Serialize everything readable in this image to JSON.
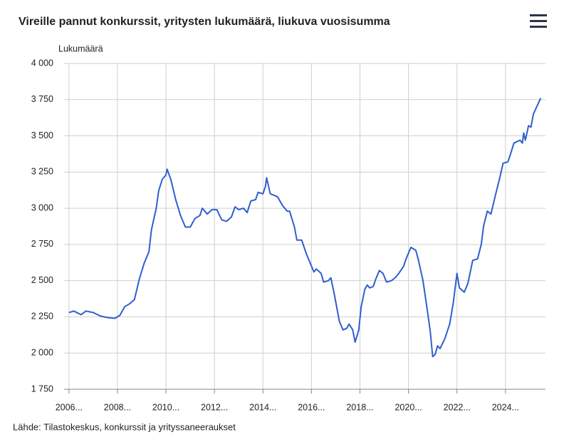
{
  "chart_data": {
    "type": "line",
    "title": "Vireille pannut konkurssit, yritysten lukumäärä, liukuva vuosisumma",
    "y_label": "Lukumäärä",
    "source": "Lähde: Tilastokeskus, konkurssit ja yrityssaneeraukset",
    "grid": true,
    "xlim": [
      2005.8,
      2025.65
    ],
    "ylim": [
      1750,
      4000
    ],
    "xticks": [
      {
        "value": 2006,
        "label": "2006..."
      },
      {
        "value": 2008,
        "label": "2008..."
      },
      {
        "value": 2010,
        "label": "2010..."
      },
      {
        "value": 2012,
        "label": "2012..."
      },
      {
        "value": 2014,
        "label": "2014..."
      },
      {
        "value": 2016,
        "label": "2016..."
      },
      {
        "value": 2018,
        "label": "2018..."
      },
      {
        "value": 2020,
        "label": "2020..."
      },
      {
        "value": 2022,
        "label": "2022..."
      },
      {
        "value": 2024,
        "label": "2024..."
      }
    ],
    "yticks": [
      {
        "value": 1750,
        "label": "1 750"
      },
      {
        "value": 2000,
        "label": "2 000"
      },
      {
        "value": 2250,
        "label": "2 250"
      },
      {
        "value": 2500,
        "label": "2 500"
      },
      {
        "value": 2750,
        "label": "2 750"
      },
      {
        "value": 3000,
        "label": "3 000"
      },
      {
        "value": 3250,
        "label": "3 250"
      },
      {
        "value": 3500,
        "label": "3 500"
      },
      {
        "value": 3750,
        "label": "3 750"
      },
      {
        "value": 4000,
        "label": "4 000"
      }
    ],
    "series": [
      {
        "color": "#2f5fcf",
        "x": [
          2006.0,
          2006.2,
          2006.5,
          2006.7,
          2007.0,
          2007.3,
          2007.6,
          2007.9,
          2008.1,
          2008.3,
          2008.5,
          2008.7,
          2008.9,
          2009.1,
          2009.3,
          2009.4,
          2009.6,
          2009.7,
          2009.85,
          2010.0,
          2010.05,
          2010.2,
          2010.4,
          2010.6,
          2010.8,
          2011.0,
          2011.2,
          2011.4,
          2011.5,
          2011.7,
          2011.9,
          2012.1,
          2012.3,
          2012.5,
          2012.7,
          2012.85,
          2013.0,
          2013.2,
          2013.35,
          2013.5,
          2013.7,
          2013.8,
          2014.0,
          2014.1,
          2014.15,
          2014.3,
          2014.6,
          2014.8,
          2015.0,
          2015.1,
          2015.3,
          2015.4,
          2015.6,
          2015.7,
          2015.8,
          2016.0,
          2016.1,
          2016.2,
          2016.4,
          2016.5,
          2016.7,
          2016.8,
          2016.95,
          2017.15,
          2017.3,
          2017.45,
          2017.55,
          2017.7,
          2017.8,
          2017.95,
          2018.05,
          2018.2,
          2018.3,
          2018.4,
          2018.55,
          2018.65,
          2018.8,
          2018.95,
          2019.1,
          2019.3,
          2019.45,
          2019.6,
          2019.8,
          2019.9,
          2020.1,
          2020.3,
          2020.4,
          2020.6,
          2020.8,
          2020.9,
          2021.0,
          2021.1,
          2021.2,
          2021.3,
          2021.5,
          2021.7,
          2021.85,
          2022.0,
          2022.1,
          2022.3,
          2022.45,
          2022.65,
          2022.85,
          2023.0,
          2023.1,
          2023.25,
          2023.4,
          2023.6,
          2023.75,
          2023.9,
          2024.1,
          2024.2,
          2024.35,
          2024.6,
          2024.7,
          2024.75,
          2024.82,
          2024.95,
          2025.05,
          2025.15,
          2025.45
        ],
        "values": [
          2280,
          2290,
          2265,
          2290,
          2280,
          2255,
          2245,
          2240,
          2260,
          2320,
          2340,
          2370,
          2510,
          2620,
          2700,
          2850,
          3000,
          3120,
          3200,
          3230,
          3270,
          3200,
          3060,
          2950,
          2870,
          2870,
          2930,
          2950,
          3000,
          2960,
          2990,
          2990,
          2920,
          2910,
          2940,
          3010,
          2990,
          3000,
          2970,
          3050,
          3060,
          3110,
          3100,
          3150,
          3210,
          3100,
          3080,
          3020,
          2980,
          2980,
          2870,
          2780,
          2780,
          2730,
          2680,
          2600,
          2560,
          2580,
          2550,
          2490,
          2500,
          2520,
          2400,
          2220,
          2160,
          2170,
          2200,
          2160,
          2075,
          2160,
          2320,
          2440,
          2470,
          2450,
          2460,
          2510,
          2570,
          2550,
          2490,
          2500,
          2520,
          2550,
          2600,
          2650,
          2730,
          2710,
          2650,
          2500,
          2270,
          2150,
          1975,
          1990,
          2050,
          2030,
          2100,
          2200,
          2350,
          2550,
          2450,
          2420,
          2480,
          2640,
          2650,
          2750,
          2880,
          2980,
          2960,
          3100,
          3200,
          3310,
          3320,
          3370,
          3450,
          3470,
          3450,
          3520,
          3470,
          3570,
          3560,
          3650,
          3760
        ]
      }
    ]
  }
}
